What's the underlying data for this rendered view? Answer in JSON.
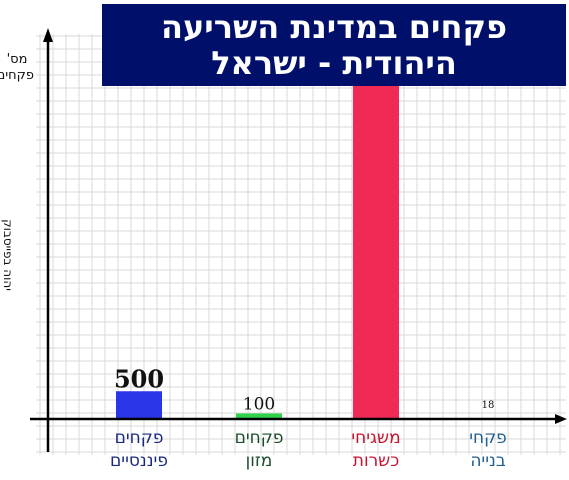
{
  "chart_data": {
    "type": "bar",
    "title": "פקחים במדינת השריעה היהודית - ישראל",
    "title_lines": [
      "פקחים במדינת השריעה",
      "היהודית - ישראל"
    ],
    "ylabel": "מס' פקחים",
    "ylabel_lines": [
      "מס'",
      "פקחים"
    ],
    "credit": "יהוה בפייסבוק",
    "categories": [
      {
        "label_lines": [
          "פקחים",
          "פיננסיים"
        ],
        "color": "#2b35e8",
        "label_color": "#1a2a80"
      },
      {
        "label_lines": [
          "פקחים",
          "מזון"
        ],
        "color": "#2fd34a",
        "label_color": "#1b4d2b"
      },
      {
        "label_lines": [
          "משגיחי",
          "כשרות"
        ],
        "color": "#f02a55",
        "label_color": "#c81230"
      },
      {
        "label_lines": [
          "פקחי",
          "בנייה"
        ],
        "color": "#4a86b8",
        "label_color": "#1f5f8f"
      }
    ],
    "values": [
      500,
      100,
      6000,
      18
    ],
    "data_labels": [
      "500",
      "100",
      "",
      "18"
    ],
    "ylim": [
      0,
      6000
    ],
    "grid": true,
    "axis_color": "#000000",
    "grid_color": "#d8d8d8"
  }
}
